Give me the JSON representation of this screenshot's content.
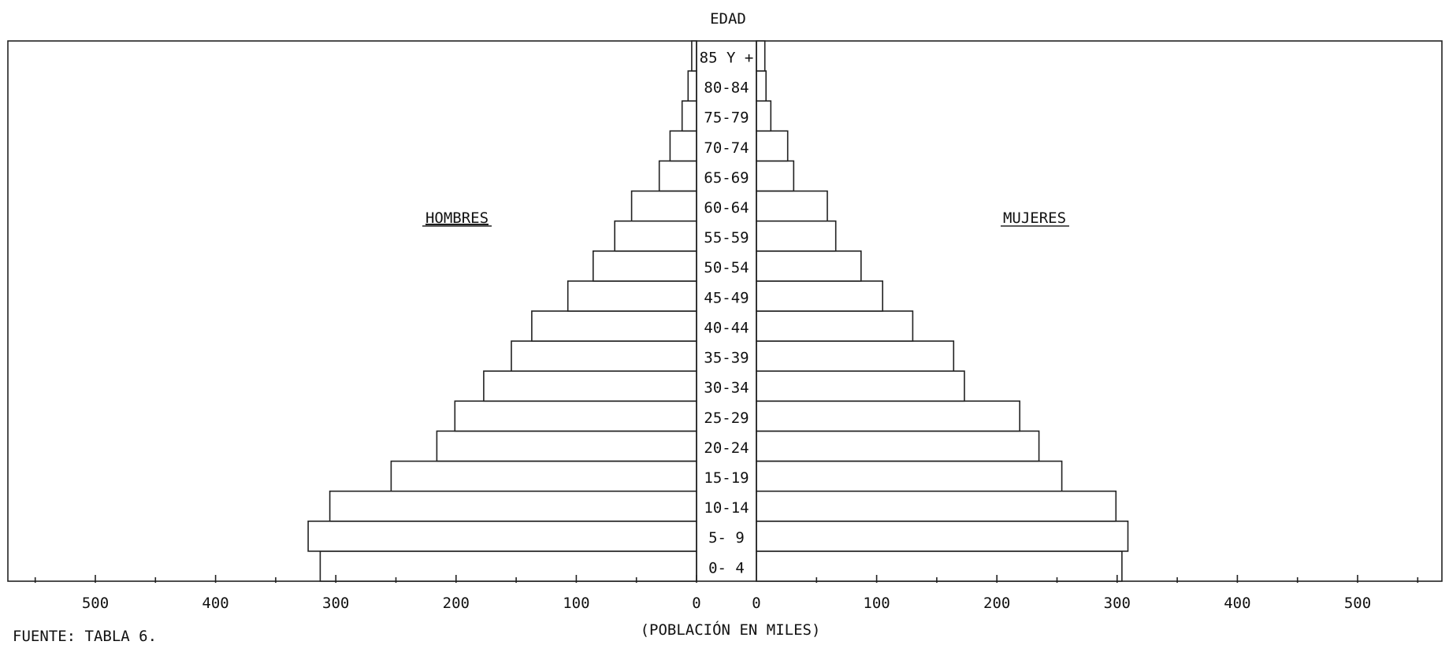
{
  "chart_data": {
    "type": "bar",
    "orientation": "horizontal",
    "title": "EDAD",
    "xlabel": "(POBLACIÓN EN MILES)",
    "source": "FUENTE:  TABLA 6.",
    "xlim": [
      0,
      500
    ],
    "x_ticks": [
      500,
      400,
      300,
      200,
      100,
      0
    ],
    "categories": [
      "0- 4",
      "5- 9",
      "10-14",
      "15-19",
      "20-24",
      "25-29",
      "30-34",
      "35-39",
      "40-44",
      "45-49",
      "50-54",
      "55-59",
      "60-64",
      "65-69",
      "70-74",
      "75-79",
      "80-84",
      "85 Y +"
    ],
    "series": [
      {
        "name": "HOMBRES",
        "side": "left",
        "values": [
          313,
          323,
          305,
          254,
          216,
          201,
          177,
          154,
          137,
          107,
          86,
          68,
          54,
          31,
          22,
          12,
          7,
          4
        ]
      },
      {
        "name": "MUJERES",
        "side": "right",
        "values": [
          304,
          309,
          299,
          254,
          235,
          219,
          173,
          164,
          130,
          105,
          87,
          66,
          59,
          31,
          26,
          12,
          8,
          7
        ]
      }
    ],
    "grid": false,
    "legend": "side labels"
  }
}
